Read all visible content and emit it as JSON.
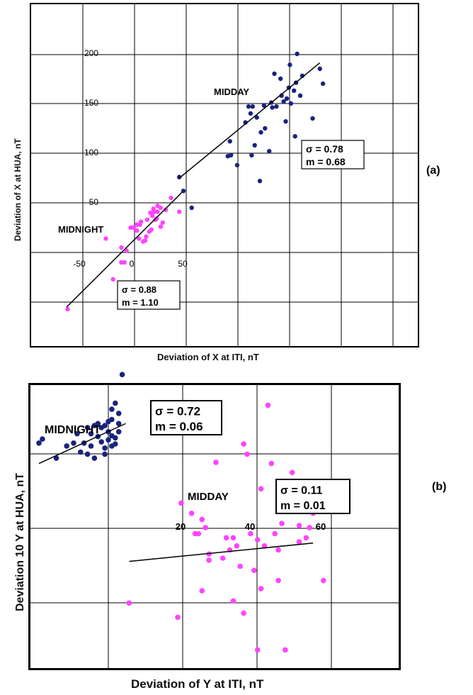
{
  "panel_labels": [
    "(a)",
    "(b)"
  ],
  "chart_data": [
    {
      "type": "scatter",
      "xlabel": "Deviation of X at ITI, nT",
      "ylabel": "Deviation of X at HUA, nT",
      "x_ticks": [
        "-50",
        "0",
        "50"
      ],
      "y_ticks": [
        "50",
        "100",
        "150",
        "200"
      ],
      "xlim": [
        -105,
        185
      ],
      "ylim": [
        -100,
        250
      ],
      "grid": true,
      "colors": {
        "midnight": "#ff44ff",
        "midday": "#1a237e",
        "fit": "#000000"
      },
      "annotations": [
        {
          "id": "midday-label",
          "text": "MIDDAY"
        },
        {
          "id": "midnight-label",
          "text": "MIDNIGHT"
        }
      ],
      "stat_boxes": [
        {
          "id": "midday-stats",
          "sigma": "σ  = 0.78",
          "m": "m = 0.68"
        },
        {
          "id": "midnight-stats",
          "sigma": "σ  = 0.88",
          "m": "m = 1.10"
        }
      ],
      "series": [
        {
          "name": "MIDNIGHT",
          "color": "#ff44ff",
          "points": [
            [
              -62,
              -57
            ],
            [
              -18,
              -27
            ],
            [
              -10,
              -10
            ],
            [
              -25,
              14
            ],
            [
              -10,
              5
            ],
            [
              -5,
              2
            ],
            [
              -7,
              -10
            ],
            [
              -1,
              25
            ],
            [
              2,
              25
            ],
            [
              5,
              22
            ],
            [
              5,
              28
            ],
            [
              7,
              14
            ],
            [
              8,
              28
            ],
            [
              9,
              31
            ],
            [
              11,
              11
            ],
            [
              13,
              12
            ],
            [
              14,
              16
            ],
            [
              15,
              33
            ],
            [
              17,
              21
            ],
            [
              19,
              23
            ],
            [
              20,
              37
            ],
            [
              21,
              44
            ],
            [
              22,
              41
            ],
            [
              23,
              33
            ],
            [
              24,
              34
            ],
            [
              25,
              47
            ],
            [
              25,
              41
            ],
            [
              28,
              45
            ],
            [
              30,
              30
            ],
            [
              28,
              26
            ],
            [
              18,
              40
            ],
            [
              33,
              43
            ],
            [
              38,
              55
            ],
            [
              46,
              41
            ],
            [
              20,
              40
            ]
          ],
          "fit": [
            [
              -63,
              -55
            ],
            [
              50,
              62
            ]
          ]
        },
        {
          "name": "MIDDAY",
          "color": "#1a237e",
          "points": [
            [
              46,
              76
            ],
            [
              50,
              62
            ],
            [
              58,
              45
            ],
            [
              93,
              97
            ],
            [
              95,
              112
            ],
            [
              96,
              98
            ],
            [
              102,
              88
            ],
            [
              110,
              131
            ],
            [
              113,
              147
            ],
            [
              115,
              140
            ],
            [
              116,
              98
            ],
            [
              117,
              147
            ],
            [
              119,
              108
            ],
            [
              121,
              136
            ],
            [
              124,
              72
            ],
            [
              125,
              121
            ],
            [
              128,
              148
            ],
            [
              129,
              125
            ],
            [
              133,
              102
            ],
            [
              135,
              151
            ],
            [
              136,
              146
            ],
            [
              138,
              180
            ],
            [
              140,
              147
            ],
            [
              144,
              175
            ],
            [
              145,
              158
            ],
            [
              147,
              152
            ],
            [
              149,
              132
            ],
            [
              150,
              155
            ],
            [
              152,
              166
            ],
            [
              153,
              189
            ],
            [
              154,
              150
            ],
            [
              157,
              163
            ],
            [
              158,
              117
            ],
            [
              160,
              200
            ],
            [
              159,
              171
            ],
            [
              163,
              158
            ],
            [
              165,
              178
            ],
            [
              175,
              135
            ],
            [
              182,
              185
            ],
            [
              185,
              170
            ]
          ],
          "fit": [
            [
              45,
              74
            ],
            [
              182,
              191
            ]
          ]
        }
      ]
    },
    {
      "type": "scatter",
      "xlabel": "Deviation of Y at ITI, nT",
      "ylabel": "Deviation 10 Y at HUA, nT",
      "x_ticks": [
        "20",
        "40",
        "60"
      ],
      "xlim": [
        -21,
        79
      ],
      "ylim": [
        -4.6,
        3.45
      ],
      "grid": true,
      "colors": {
        "midnight": "#1a237e",
        "midday": "#ff44ff",
        "fit": "#000000"
      },
      "annotations": [
        {
          "id": "midnight-label",
          "text": "MIDNIGHT"
        },
        {
          "id": "midday-label",
          "text": "MIDDAY"
        }
      ],
      "stat_boxes": [
        {
          "id": "midnight-stats",
          "sigma": "σ  = 0.72",
          "m": "m = 0.06"
        },
        {
          "id": "midday-stats",
          "sigma": "σ  = 0.11",
          "m": "m = 0.01"
        }
      ],
      "series": [
        {
          "name": "MIDNIGHT",
          "color": "#1a237e",
          "points": [
            [
              -20,
              1.62
            ],
            [
              -19,
              1.72
            ],
            [
              -15,
              1.25
            ],
            [
              -12,
              1.55
            ],
            [
              -10,
              1.62
            ],
            [
              -9,
              1.85
            ],
            [
              -8,
              1.4
            ],
            [
              -7,
              1.62
            ],
            [
              -6,
              1.35
            ],
            [
              -6,
              2.0
            ],
            [
              -5,
              1.55
            ],
            [
              -5,
              1.85
            ],
            [
              -4,
              2.05
            ],
            [
              -4,
              1.25
            ],
            [
              -3,
              1.78
            ],
            [
              -3,
              2.1
            ],
            [
              -2,
              1.65
            ],
            [
              -2,
              2.0
            ],
            [
              -1,
              2.05
            ],
            [
              -1,
              1.35
            ],
            [
              -1,
              1.5
            ],
            [
              0,
              2.15
            ],
            [
              0,
              1.9
            ],
            [
              0,
              1.7
            ],
            [
              1,
              2.2
            ],
            [
              1,
              2.45
            ],
            [
              1,
              1.55
            ],
            [
              1,
              1.8
            ],
            [
              2,
              1.6
            ],
            [
              2,
              2.6
            ],
            [
              2,
              1.75
            ],
            [
              3,
              2.35
            ],
            [
              3,
              2.1
            ],
            [
              3,
              1.9
            ],
            [
              4,
              3.3
            ]
          ],
          "fit": [
            [
              -20,
              1.12
            ],
            [
              5,
              2.1
            ]
          ]
        },
        {
          "name": "MIDDAY",
          "color": "#ff44ff",
          "points": [
            [
              6,
              -2.3
            ],
            [
              20,
              -2.65
            ],
            [
              21,
              0.15
            ],
            [
              24,
              -0.1
            ],
            [
              25,
              -0.6
            ],
            [
              26,
              -0.6
            ],
            [
              27,
              -0.25
            ],
            [
              27,
              -2.0
            ],
            [
              28,
              -0.45
            ],
            [
              29,
              -1.1
            ],
            [
              29,
              -1.25
            ],
            [
              31,
              1.15
            ],
            [
              33,
              -1.2
            ],
            [
              34,
              -0.7
            ],
            [
              35,
              -1.0
            ],
            [
              36,
              -2.25
            ],
            [
              36,
              -0.7
            ],
            [
              37,
              -0.9
            ],
            [
              38,
              -1.4
            ],
            [
              39,
              -2.55
            ],
            [
              39,
              1.6
            ],
            [
              40,
              1.35
            ],
            [
              41,
              -0.6
            ],
            [
              42,
              -1.5
            ],
            [
              43,
              -0.75
            ],
            [
              43,
              -3.45
            ],
            [
              44,
              0.5
            ],
            [
              44,
              -1.95
            ],
            [
              45,
              -0.9
            ],
            [
              46,
              2.55
            ],
            [
              47,
              1.12
            ],
            [
              48,
              -0.6
            ],
            [
              49,
              -1.75
            ],
            [
              49,
              -1.0
            ],
            [
              50,
              -0.35
            ],
            [
              51,
              -3.45
            ],
            [
              53,
              0.9
            ],
            [
              55,
              -0.4
            ],
            [
              55,
              -0.8
            ],
            [
              57,
              -0.7
            ],
            [
              58,
              -0.45
            ],
            [
              59,
              -0.1
            ],
            [
              62,
              -1.75
            ]
          ],
          "fit": [
            [
              6,
              -1.28
            ],
            [
              59,
              -0.83
            ]
          ]
        }
      ]
    }
  ]
}
